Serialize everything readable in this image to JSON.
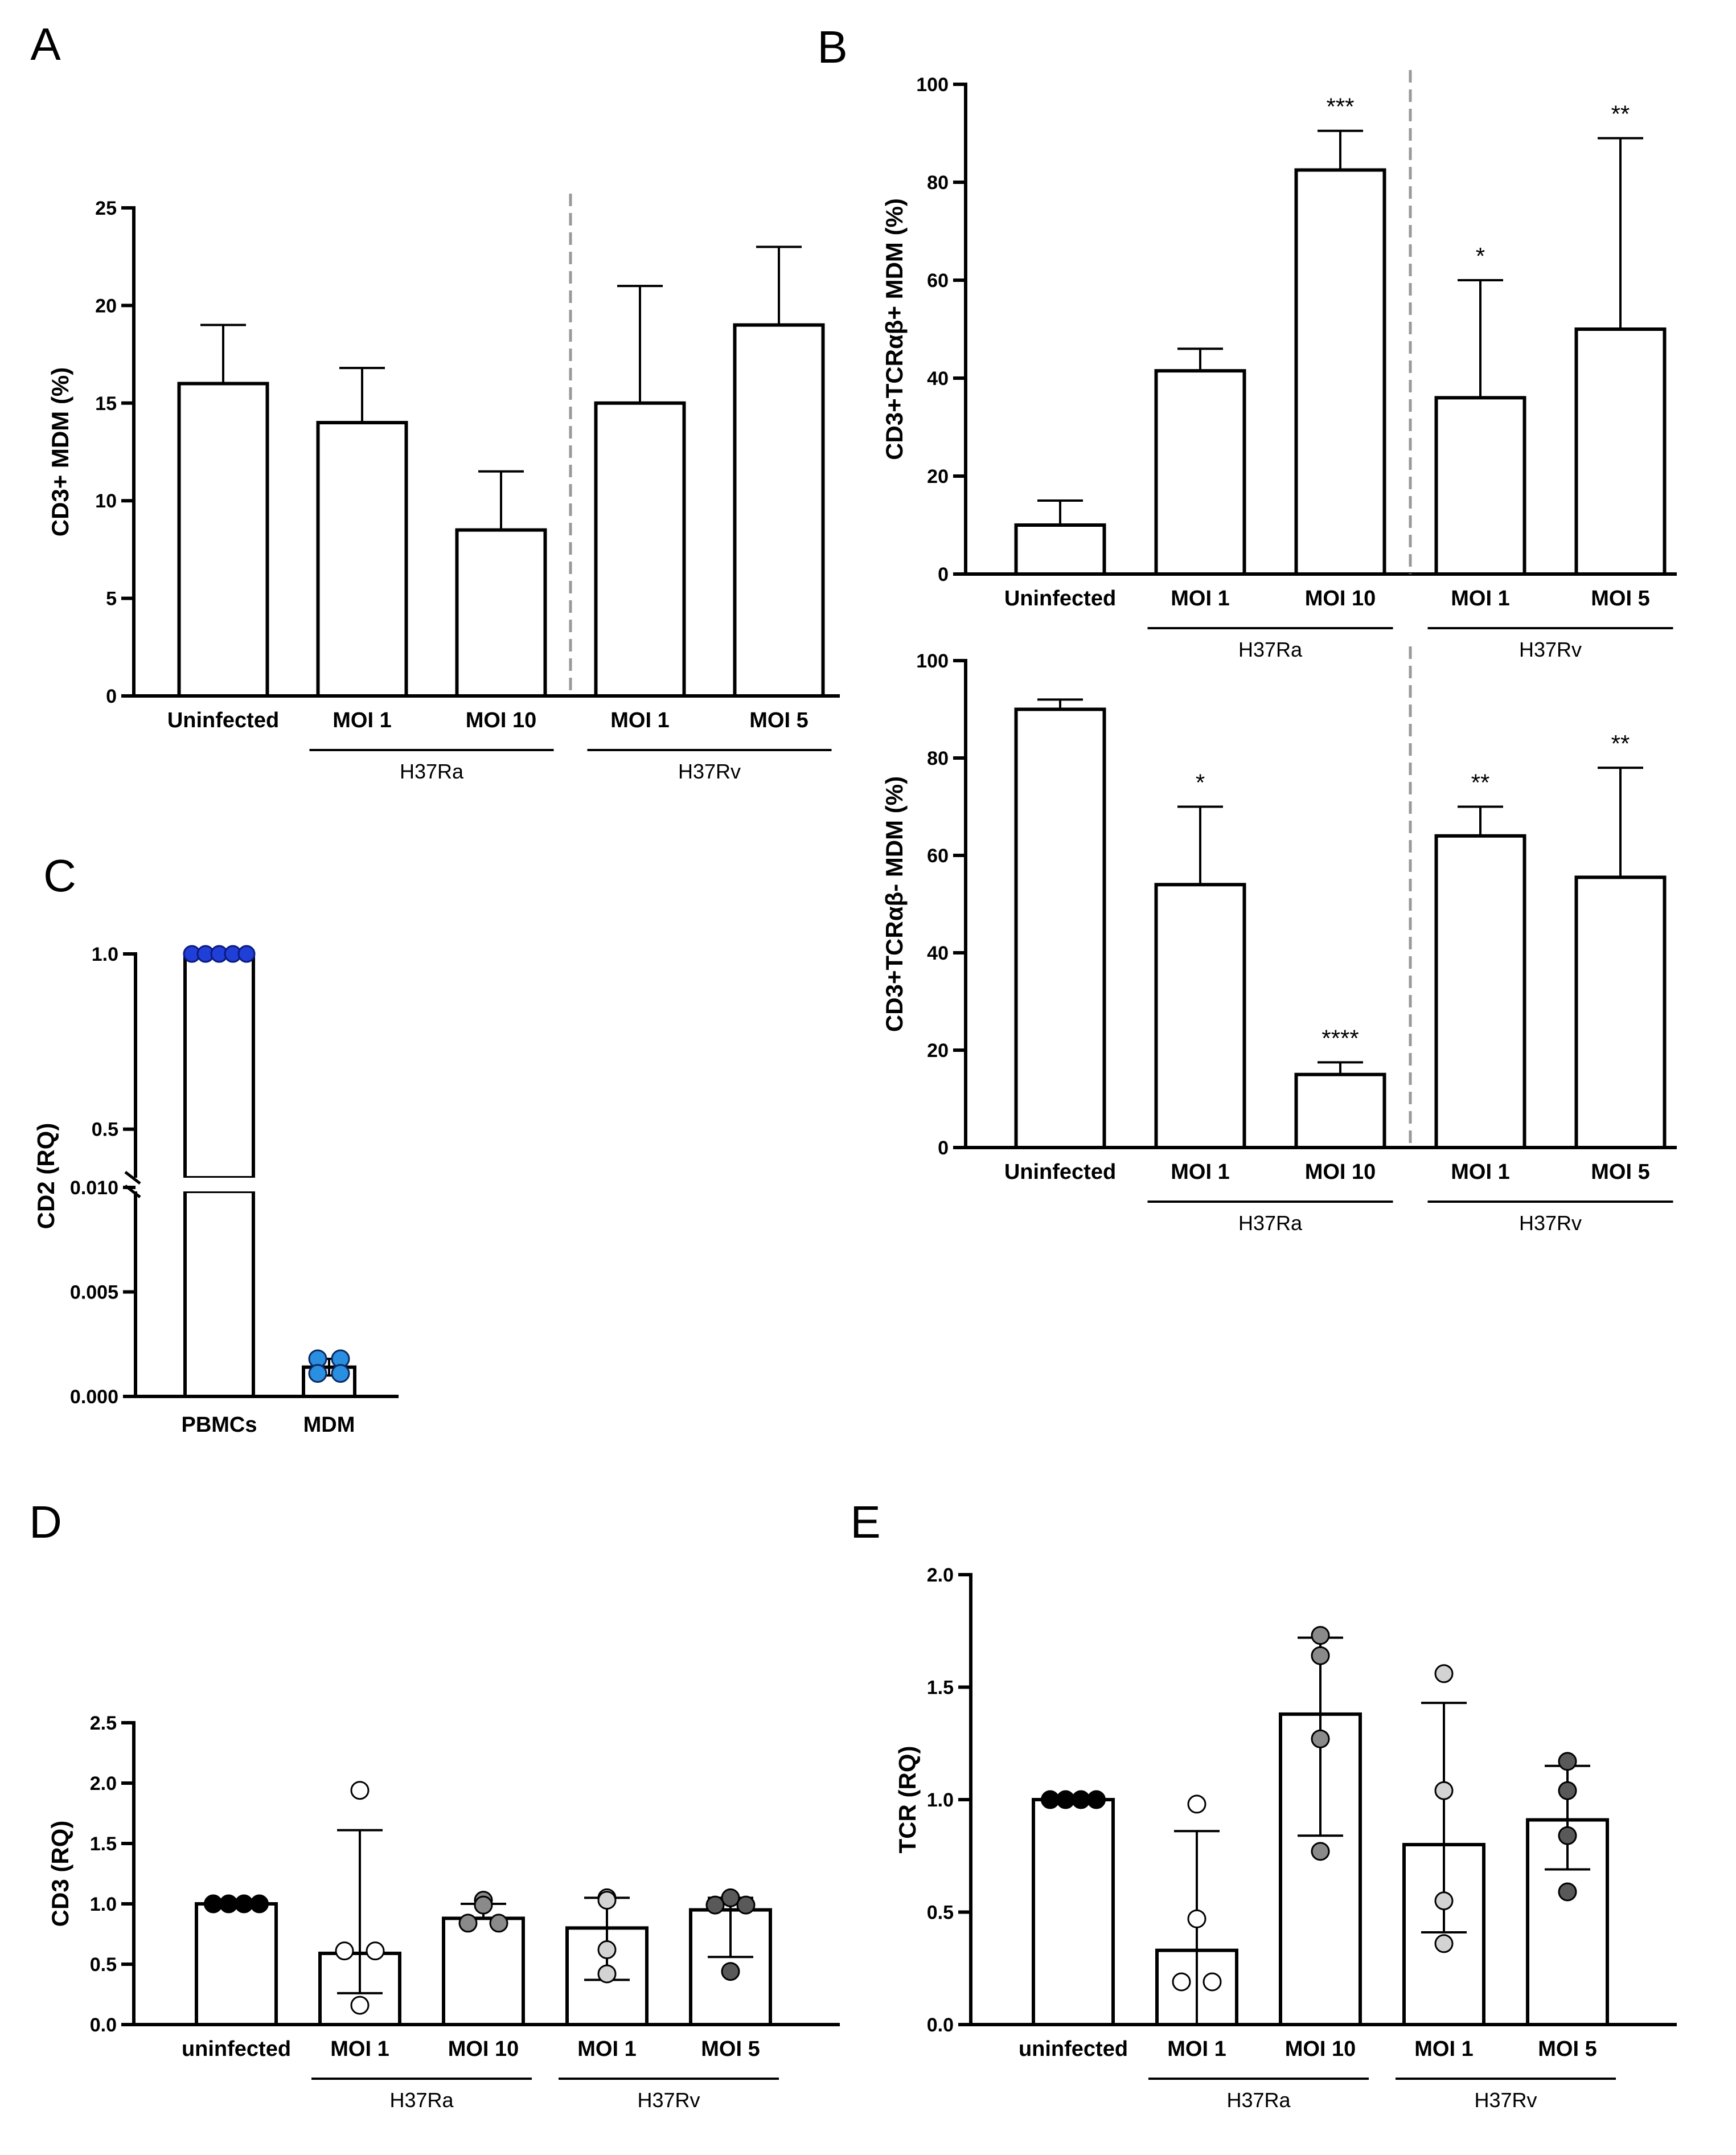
{
  "figure_title": "",
  "chart_data": [
    {
      "id": "panelA",
      "panel_label": "A",
      "type": "bar",
      "ylabel": "CD3+ MDM (%)",
      "ylim": [
        0,
        25
      ],
      "yticks": [
        0,
        5,
        10,
        15,
        20,
        25
      ],
      "categories": [
        "Uninfected",
        "MOI 1",
        "MOI 10",
        "MOI 1",
        "MOI 5"
      ],
      "values": [
        16,
        14,
        8.5,
        15,
        19
      ],
      "errors": [
        3,
        2.8,
        3,
        6,
        4
      ],
      "significance": [
        "",
        "",
        "",
        "",
        ""
      ],
      "groups": [
        {
          "label": "H37Ra",
          "from": 1,
          "to": 2
        },
        {
          "label": "H37Rv",
          "from": 3,
          "to": 4
        }
      ],
      "divider_after": 2,
      "grid": false
    },
    {
      "id": "panelB_top",
      "panel_label": "B",
      "type": "bar",
      "ylabel": "CD3+TCRαβ+ MDM (%)",
      "ylim": [
        0,
        100
      ],
      "yticks": [
        0,
        20,
        40,
        60,
        80,
        100
      ],
      "categories": [
        "Uninfected",
        "MOI 1",
        "MOI 10",
        "MOI 1",
        "MOI 5"
      ],
      "values": [
        10,
        41.5,
        82.5,
        36,
        50
      ],
      "errors": [
        5,
        4.5,
        8,
        24,
        39
      ],
      "significance": [
        "",
        "",
        "***",
        "*",
        "**"
      ],
      "groups": [
        {
          "label": "H37Ra",
          "from": 1,
          "to": 2
        },
        {
          "label": "H37Rv",
          "from": 3,
          "to": 4
        }
      ],
      "divider_after": 2,
      "grid": false
    },
    {
      "id": "panelB_bottom",
      "panel_label": "",
      "type": "bar",
      "ylabel": "CD3+TCRαβ- MDM (%)",
      "ylim": [
        0,
        100
      ],
      "yticks": [
        0,
        20,
        40,
        60,
        80,
        100
      ],
      "categories": [
        "Uninfected",
        "MOI 1",
        "MOI 10",
        "MOI 1",
        "MOI 5"
      ],
      "values": [
        90,
        54,
        15,
        64,
        55.5
      ],
      "errors": [
        2,
        16,
        2.5,
        6,
        22.5
      ],
      "significance": [
        "",
        "*",
        "****",
        "**",
        "**"
      ],
      "groups": [
        {
          "label": "H37Ra",
          "from": 1,
          "to": 2
        },
        {
          "label": "H37Rv",
          "from": 3,
          "to": 4
        }
      ],
      "divider_after": 2,
      "grid": false
    },
    {
      "id": "panelC",
      "panel_label": "C",
      "type": "bar",
      "ylabel": "CD2 (RQ)",
      "broken_axis": true,
      "lower_ylim": [
        0,
        0.01
      ],
      "lower_yticks": [
        "0.000",
        "0.005",
        "0.010"
      ],
      "upper_ylim": [
        0.35,
        1.0
      ],
      "upper_yticks": [
        "0.5",
        "1.0"
      ],
      "categories": [
        "PBMCs",
        "MDM"
      ],
      "values": [
        1.0,
        0.0014
      ],
      "errors": [
        0,
        0.0004
      ],
      "points": [
        {
          "category": 0,
          "values": [
            1.0,
            1.0,
            1.0,
            1.0,
            1.0
          ],
          "color": "#1f3fd6"
        },
        {
          "category": 1,
          "values": [
            0.0018,
            0.0018,
            0.0011,
            0.0011
          ],
          "color": "#2a8fe0"
        }
      ],
      "grid": false
    },
    {
      "id": "panelD",
      "panel_label": "D",
      "type": "bar",
      "ylabel": "CD3 (RQ)",
      "ylim": [
        0,
        2.5
      ],
      "yticks": [
        "0.0",
        "0.5",
        "1.0",
        "1.5",
        "2.0",
        "2.5"
      ],
      "categories": [
        "uninfected",
        "MOI 1",
        "MOI 10",
        "MOI 1",
        "MOI 5"
      ],
      "values": [
        1.0,
        0.59,
        0.88,
        0.8,
        0.95
      ],
      "errors": [
        0,
        1.02,
        0.12,
        0.25,
        0.1
      ],
      "lower_errors": [
        0,
        0.33,
        0.0,
        0.43,
        0.39
      ],
      "points": [
        {
          "category": 0,
          "values": [
            1.0,
            1.0,
            1.0,
            1.0
          ],
          "color": "#000000"
        },
        {
          "category": 1,
          "values": [
            1.94,
            0.61,
            0.61,
            0.16
          ],
          "color": "#ffffff"
        },
        {
          "category": 2,
          "values": [
            1.03,
            0.99,
            0.84,
            0.84
          ],
          "color": "#8a8a8a"
        },
        {
          "category": 3,
          "values": [
            1.05,
            1.03,
            0.62,
            0.42
          ],
          "color": "#d3d3d3"
        },
        {
          "category": 4,
          "values": [
            1.05,
            0.99,
            0.99,
            0.44
          ],
          "color": "#595959"
        }
      ],
      "groups": [
        {
          "label": "H37Ra",
          "from": 1,
          "to": 2
        },
        {
          "label": "H37Rv",
          "from": 3,
          "to": 4
        }
      ],
      "grid": false
    },
    {
      "id": "panelE",
      "panel_label": "E",
      "type": "bar",
      "ylabel": "TCR (RQ)",
      "ylim": [
        0,
        2.0
      ],
      "yticks": [
        "0.0",
        "0.5",
        "1.0",
        "1.5",
        "2.0"
      ],
      "categories": [
        "uninfected",
        "MOI 1",
        "MOI 10",
        "MOI 1",
        "MOI 5"
      ],
      "values": [
        1.0,
        0.33,
        1.38,
        0.8,
        0.91
      ],
      "errors": [
        0,
        0.53,
        0.34,
        0.63,
        0.24
      ],
      "lower_errors": [
        0,
        0.33,
        0.54,
        0.39,
        0.22
      ],
      "points": [
        {
          "category": 0,
          "values": [
            1.0,
            1.0,
            1.0,
            1.0
          ],
          "color": "#000000"
        },
        {
          "category": 1,
          "values": [
            0.98,
            0.47,
            0.19,
            0.19
          ],
          "color": "#ffffff"
        },
        {
          "category": 2,
          "values": [
            1.73,
            1.64,
            1.27,
            0.77
          ],
          "color": "#8a8a8a"
        },
        {
          "category": 3,
          "values": [
            1.56,
            1.04,
            0.55,
            0.36
          ],
          "color": "#d3d3d3"
        },
        {
          "category": 4,
          "values": [
            1.17,
            1.04,
            0.84,
            0.59
          ],
          "color": "#595959"
        }
      ],
      "groups": [
        {
          "label": "H37Ra",
          "from": 1,
          "to": 2
        },
        {
          "label": "H37Rv",
          "from": 3,
          "to": 4
        }
      ],
      "grid": false
    }
  ]
}
